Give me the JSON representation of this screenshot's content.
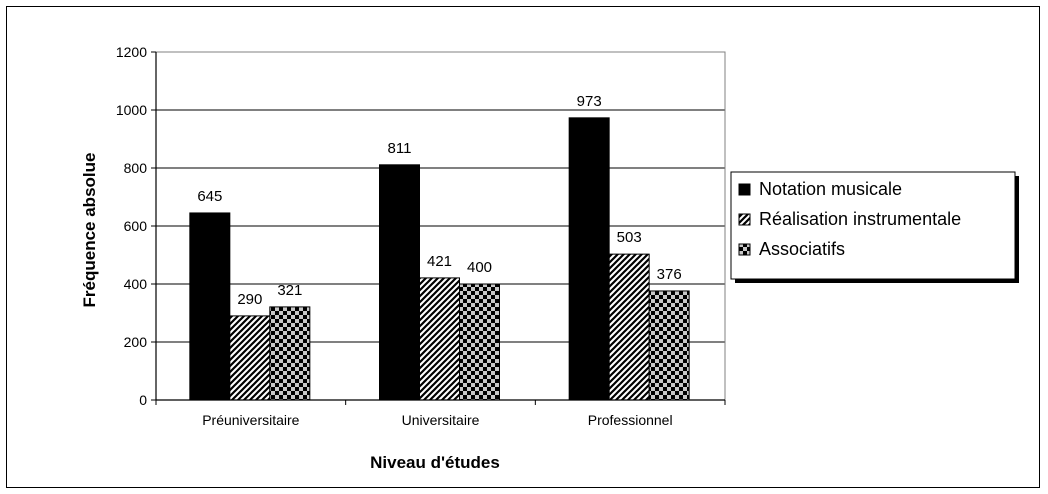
{
  "chart_data": {
    "type": "bar",
    "title": "",
    "xlabel": "Niveau d'études",
    "ylabel": "Fréquence absolue",
    "categories": [
      "Préuniversitaire",
      "Universitaire",
      "Professionnel"
    ],
    "series": [
      {
        "name": "Notation musicale",
        "values": [
          645,
          811,
          973
        ],
        "pattern": "solid"
      },
      {
        "name": "Réalisation instrumentale",
        "values": [
          290,
          421,
          503
        ],
        "pattern": "diagonal-hatch"
      },
      {
        "name": "Associatifs",
        "values": [
          321,
          400,
          376
        ],
        "pattern": "checker"
      }
    ],
    "ylim": [
      0,
      1200
    ],
    "yticks": [
      0,
      200,
      400,
      600,
      800,
      1000,
      1200
    ],
    "grid": true,
    "legend_position": "right",
    "data_labels": true,
    "colors": {
      "bar": "#000000",
      "pattern_light": "#bfbfbf",
      "grid": "#000000",
      "plot_border": "#808080"
    }
  }
}
